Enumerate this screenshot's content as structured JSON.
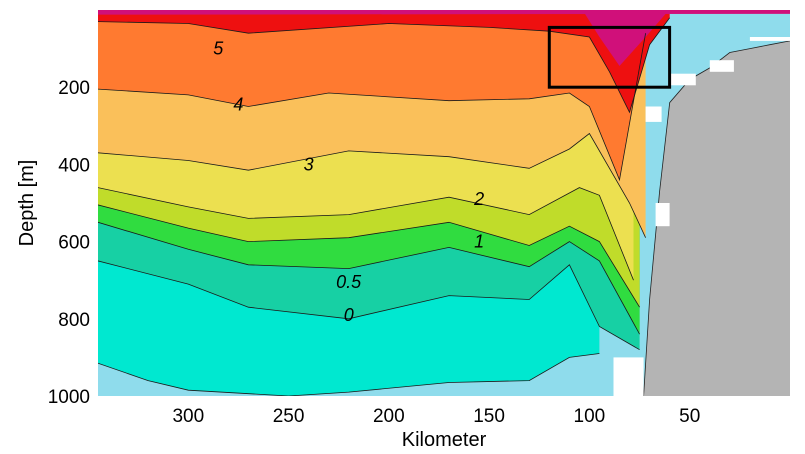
{
  "chart_data": {
    "type": "filled-contour",
    "title": "",
    "xlabel": "Kilometer",
    "ylabel": "Depth [m]",
    "x_reversed": true,
    "y_reversed": true,
    "xlim": [
      345,
      0
    ],
    "ylim": [
      0,
      1000
    ],
    "x_ticks": [
      300,
      250,
      200,
      150,
      100,
      50
    ],
    "y_ticks": [
      200,
      400,
      600,
      800,
      1000
    ],
    "grid": false,
    "legend": "none",
    "contour_levels": [
      -0.5,
      0,
      0.5,
      1,
      2,
      3,
      4,
      5
    ],
    "band_colors": {
      "below_-0.5": "#8fdcec",
      "-0.5_to_0": "#00e8d0",
      "0_to_0.5": "#17d0a4",
      "0.5_to_1": "#30dc40",
      "1_to_2": "#c0dc2a",
      "2_to_3": "#ece050",
      "3_to_4": "#fac05a",
      "4_to_5": "#ff7a30",
      "5_to_6": "#ee1010",
      "above_6": "#d0107a"
    },
    "contour_lines": [
      {
        "level": 5,
        "label": "5",
        "x": [
          345,
          300,
          270,
          200,
          150,
          120,
          100,
          90,
          80,
          70,
          60
        ],
        "depth": [
          30,
          35,
          60,
          35,
          45,
          55,
          70,
          160,
          265,
          90,
          20
        ]
      },
      {
        "level": 4,
        "label": "4",
        "x": [
          345,
          300,
          270,
          230,
          170,
          130,
          110,
          100,
          85,
          72
        ],
        "depth": [
          205,
          220,
          250,
          215,
          235,
          230,
          215,
          250,
          440,
          60
        ]
      },
      {
        "level": 3,
        "label": "3",
        "x": [
          345,
          300,
          270,
          220,
          170,
          130,
          110,
          100,
          80,
          72
        ],
        "depth": [
          370,
          390,
          415,
          365,
          380,
          410,
          360,
          320,
          500,
          590
        ]
      },
      {
        "level": 2,
        "label": "2",
        "x": [
          345,
          300,
          270,
          220,
          170,
          130,
          105,
          95,
          78
        ],
        "depth": [
          460,
          510,
          540,
          530,
          485,
          530,
          460,
          480,
          700
        ]
      },
      {
        "level": 1,
        "label": "1",
        "x": [
          345,
          300,
          270,
          220,
          170,
          130,
          110,
          95,
          75
        ],
        "depth": [
          505,
          565,
          600,
          590,
          550,
          610,
          560,
          600,
          770
        ]
      },
      {
        "level": 0.5,
        "label": "0.5",
        "x": [
          345,
          300,
          270,
          220,
          170,
          130,
          110,
          95,
          75
        ],
        "depth": [
          550,
          620,
          660,
          670,
          615,
          665,
          600,
          650,
          840
        ]
      },
      {
        "level": 0,
        "label": "0",
        "x": [
          345,
          300,
          270,
          220,
          170,
          130,
          110,
          95,
          75
        ],
        "depth": [
          650,
          710,
          770,
          800,
          740,
          750,
          660,
          820,
          880
        ]
      },
      {
        "level": -0.5,
        "label": "",
        "x": [
          345,
          320,
          300,
          250,
          220,
          170,
          130,
          110,
          95
        ],
        "depth": [
          915,
          960,
          985,
          1000,
          990,
          965,
          960,
          900,
          890
        ]
      }
    ],
    "seafloor_color": "#b4b4b4",
    "seafloor": {
      "x": [
        73,
        70,
        65,
        60,
        50,
        40,
        30,
        20,
        10,
        0
      ],
      "depth": [
        1000,
        750,
        470,
        240,
        180,
        150,
        110,
        100,
        90,
        80
      ]
    },
    "box": {
      "x": [
        120,
        60
      ],
      "depth": [
        45,
        200
      ],
      "color": "#000000"
    }
  }
}
